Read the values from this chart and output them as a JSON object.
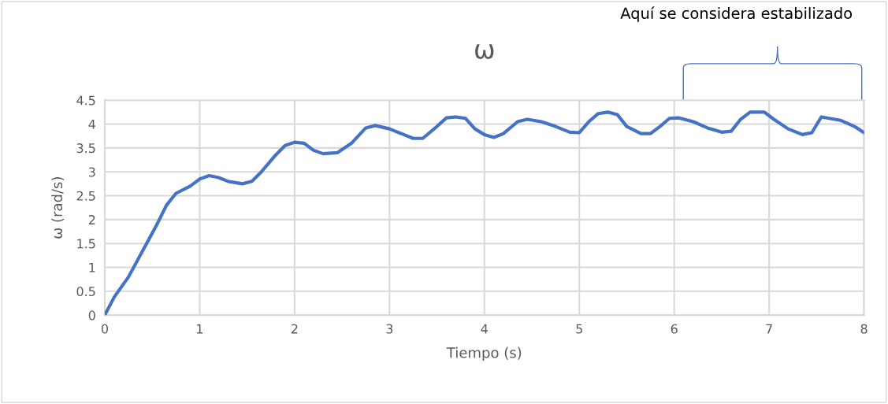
{
  "chart_data": {
    "type": "line",
    "title": "ω",
    "xlabel": "Tiempo (s)",
    "ylabel": "ω (rad/s)",
    "annotations": [
      "Aquí se considera estabilizado"
    ],
    "x": [
      0,
      0.1,
      0.25,
      0.4,
      0.55,
      0.65,
      0.75,
      0.9,
      1.0,
      1.1,
      1.2,
      1.3,
      1.45,
      1.55,
      1.65,
      1.8,
      1.9,
      2.0,
      2.1,
      2.2,
      2.3,
      2.45,
      2.6,
      2.75,
      2.85,
      3.0,
      3.15,
      3.25,
      3.35,
      3.5,
      3.6,
      3.7,
      3.8,
      3.9,
      4.0,
      4.1,
      4.2,
      4.35,
      4.45,
      4.6,
      4.75,
      4.9,
      5.0,
      5.1,
      5.2,
      5.3,
      5.4,
      5.5,
      5.65,
      5.75,
      5.85,
      5.95,
      6.05,
      6.2,
      6.35,
      6.5,
      6.6,
      6.7,
      6.8,
      6.95,
      7.05,
      7.2,
      7.35,
      7.45,
      7.55,
      7.75,
      7.9,
      8.0
    ],
    "series": [
      {
        "color": "#4472c4",
        "values": [
          0,
          0.38,
          0.8,
          1.35,
          1.9,
          2.3,
          2.55,
          2.7,
          2.85,
          2.92,
          2.88,
          2.8,
          2.75,
          2.8,
          3.0,
          3.35,
          3.55,
          3.62,
          3.6,
          3.45,
          3.38,
          3.4,
          3.6,
          3.92,
          3.97,
          3.9,
          3.78,
          3.7,
          3.7,
          3.95,
          4.13,
          4.15,
          4.12,
          3.9,
          3.78,
          3.72,
          3.8,
          4.05,
          4.1,
          4.05,
          3.95,
          3.83,
          3.82,
          4.05,
          4.22,
          4.25,
          4.2,
          3.95,
          3.8,
          3.8,
          3.95,
          4.12,
          4.13,
          4.05,
          3.92,
          3.83,
          3.85,
          4.1,
          4.25,
          4.25,
          4.1,
          3.9,
          3.78,
          3.82,
          4.15,
          4.08,
          3.95,
          3.82
        ]
      }
    ],
    "xlim": [
      0,
      8
    ],
    "xticks": [
      0,
      1,
      2,
      3,
      4,
      5,
      6,
      7,
      8
    ],
    "ylim": [
      0,
      4.5
    ],
    "yticks": [
      0,
      0.5,
      1,
      1.5,
      2,
      2.5,
      3,
      3.5,
      4,
      4.5
    ],
    "grid": true,
    "marker": "none",
    "line_style": "solid"
  }
}
